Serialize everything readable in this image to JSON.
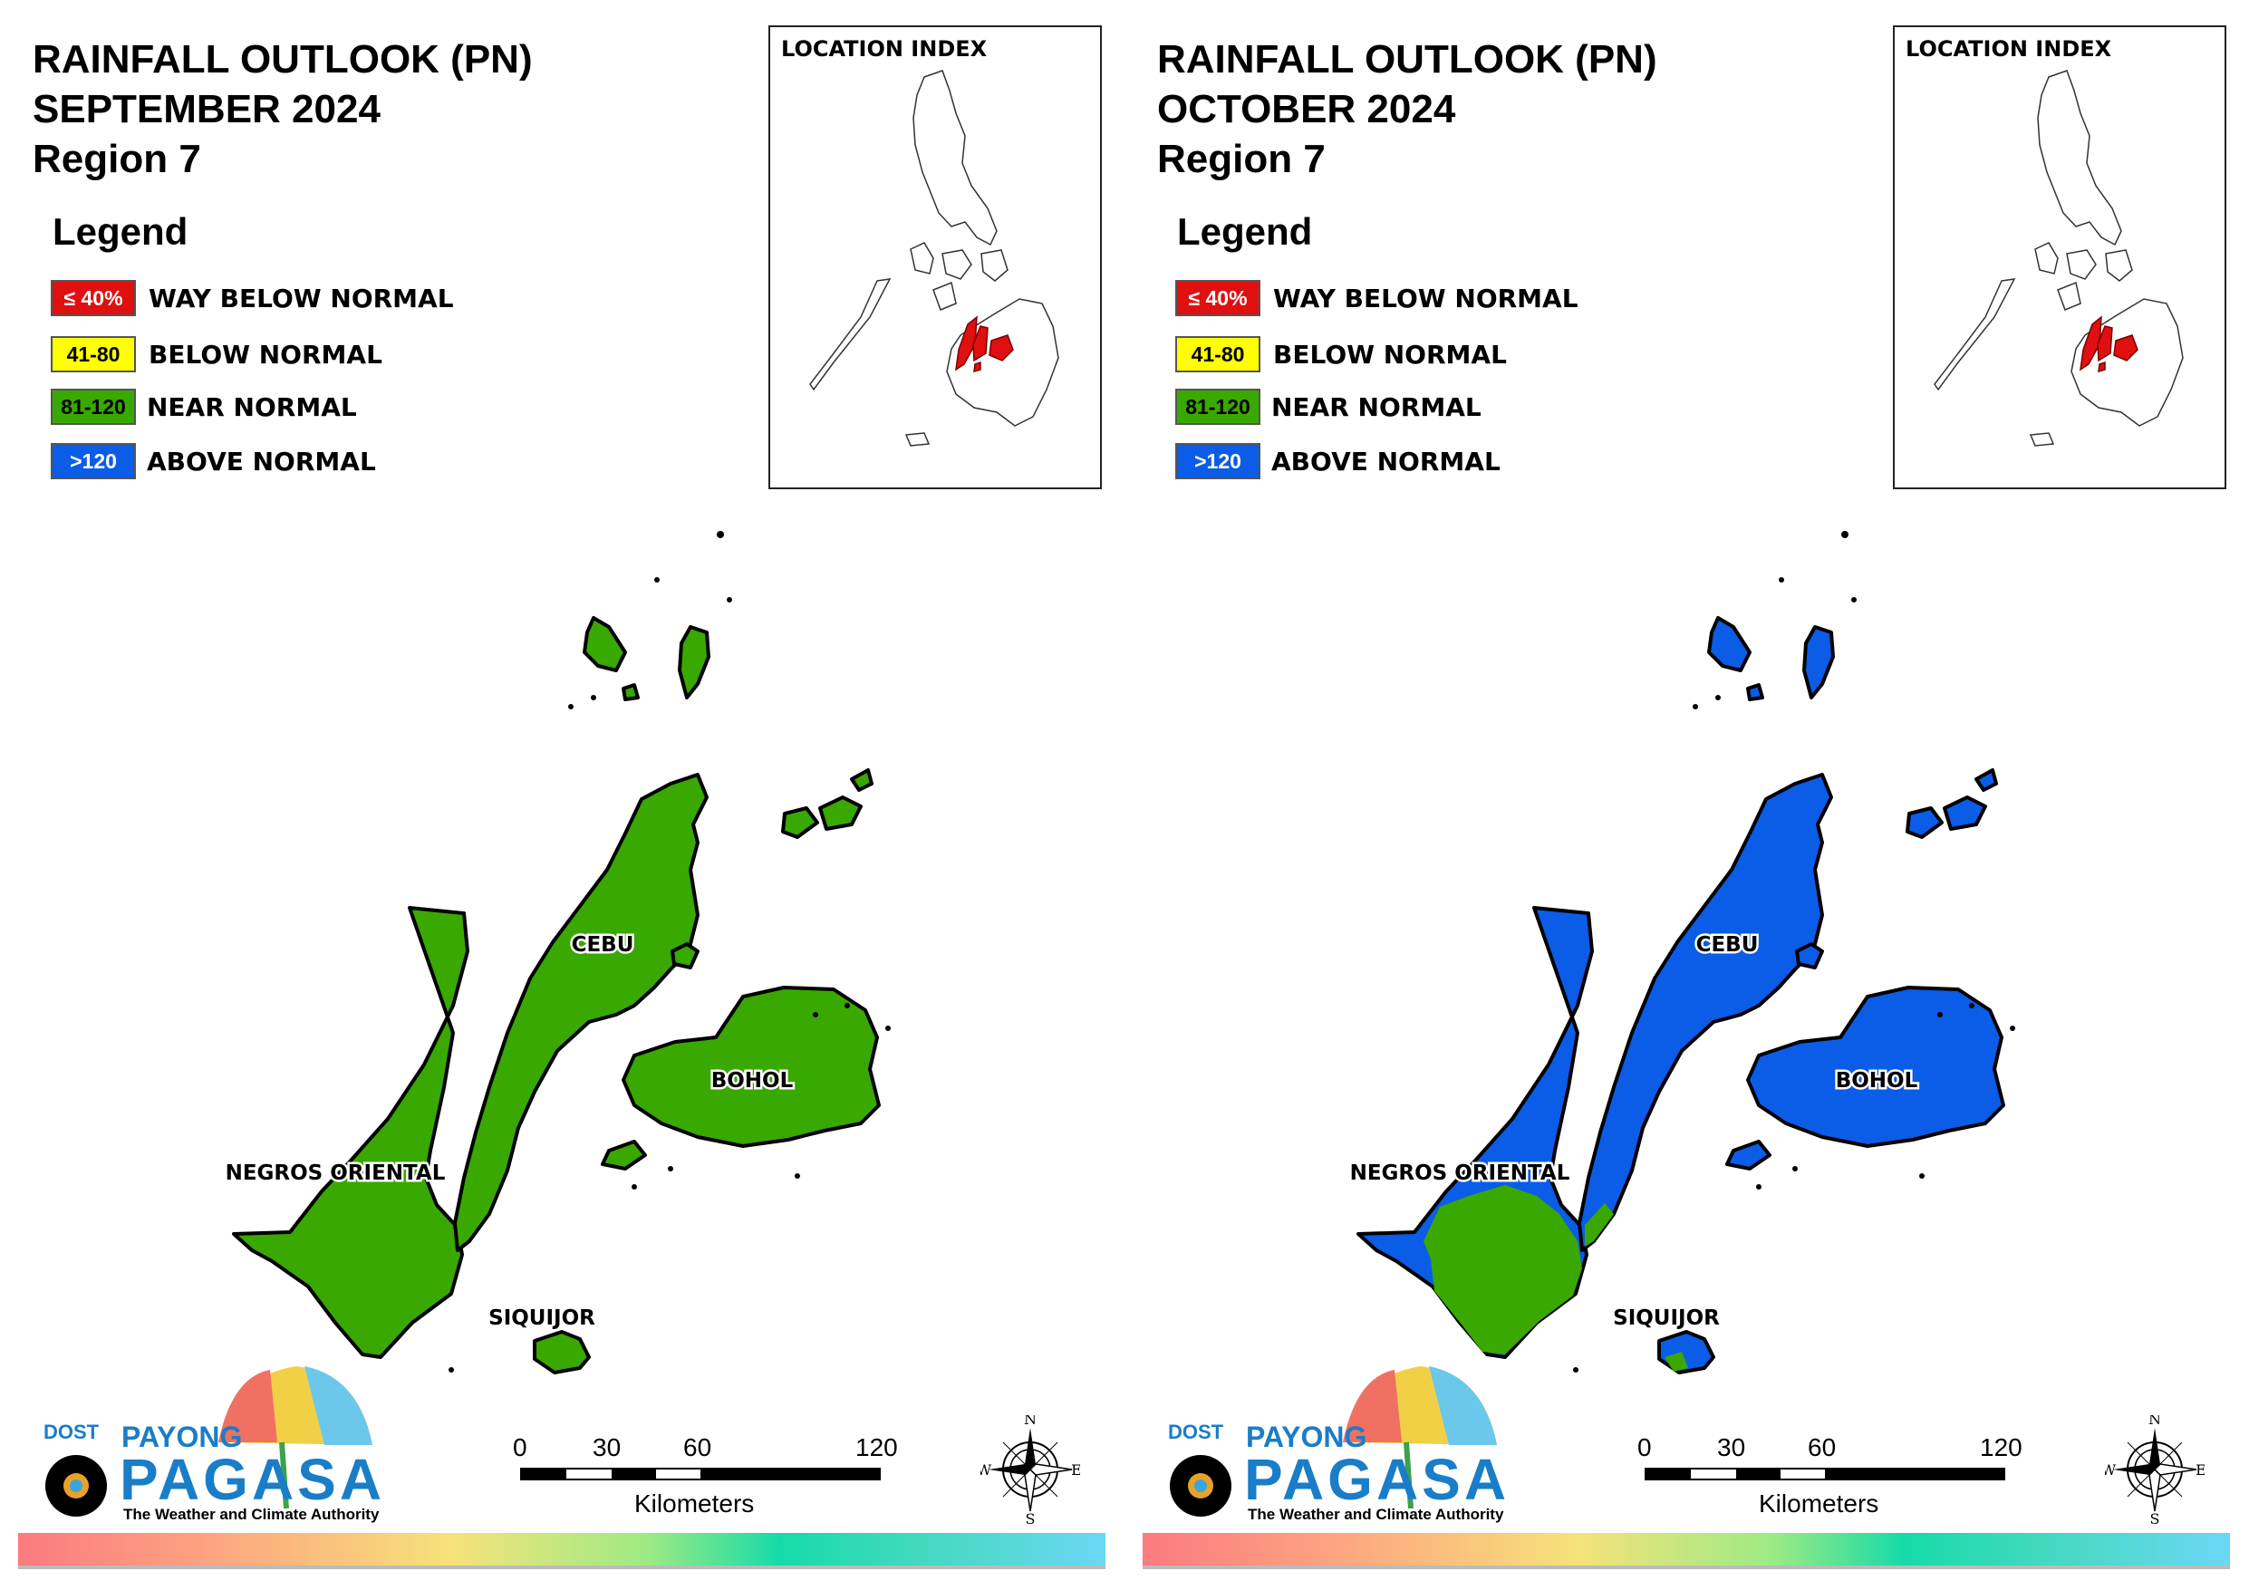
{
  "colors": {
    "way_below": "#e01010",
    "below": "#ffff00",
    "near": "#39a800",
    "above": "#0b5ce6"
  },
  "panels": [
    {
      "title_line1": "RAINFALL OUTLOOK (PN)",
      "title_line2": "SEPTEMBER 2024",
      "title_line3": "Region 7",
      "legend_title": "Legend",
      "legend": [
        {
          "range": "≤ 40%",
          "label": "WAY BELOW NORMAL"
        },
        {
          "range": "41-80",
          "label": "BELOW NORMAL"
        },
        {
          "range": "81-120",
          "label": "NEAR NORMAL"
        },
        {
          "range": ">120",
          "label": "ABOVE NORMAL"
        }
      ],
      "index_title": "LOCATION INDEX",
      "provinces": {
        "cebu": "CEBU",
        "bohol": "BOHOL",
        "negros": "NEGROS ORIENTAL",
        "siquijor": "SIQUIJOR"
      },
      "province_category": {
        "cebu": "NEAR NORMAL",
        "bohol": "NEAR NORMAL",
        "negros": "NEAR NORMAL",
        "siquijor": "NEAR NORMAL"
      },
      "scale": {
        "ticks": [
          "0",
          "30",
          "60",
          "120"
        ],
        "unit": "Kilometers"
      },
      "compass": {
        "n": "N",
        "s": "S",
        "e": "E",
        "w": "W"
      },
      "logo": {
        "dost": "DOST",
        "payong": "PAYONG",
        "pagasa": "PAGASA",
        "tagline": "The Weather and Climate Authority"
      }
    },
    {
      "title_line1": "RAINFALL OUTLOOK (PN)",
      "title_line2": "OCTOBER 2024",
      "title_line3": "Region 7",
      "legend_title": "Legend",
      "legend": [
        {
          "range": "≤ 40%",
          "label": "WAY BELOW NORMAL"
        },
        {
          "range": "41-80",
          "label": "BELOW NORMAL"
        },
        {
          "range": "81-120",
          "label": "NEAR NORMAL"
        },
        {
          "range": ">120",
          "label": "ABOVE NORMAL"
        }
      ],
      "index_title": "LOCATION INDEX",
      "provinces": {
        "cebu": "CEBU",
        "bohol": "BOHOL",
        "negros": "NEGROS ORIENTAL",
        "siquijor": "SIQUIJOR"
      },
      "province_category": {
        "cebu": "ABOVE NORMAL",
        "bohol": "ABOVE NORMAL",
        "negros": "ABOVE NORMAL",
        "negros_south": "NEAR NORMAL",
        "siquijor": "ABOVE NORMAL"
      },
      "scale": {
        "ticks": [
          "0",
          "30",
          "60",
          "120"
        ],
        "unit": "Kilometers"
      },
      "compass": {
        "n": "N",
        "s": "S",
        "e": "E",
        "w": "W"
      },
      "logo": {
        "dost": "DOST",
        "payong": "PAYONG",
        "pagasa": "PAGASA",
        "tagline": "The Weather and Climate Authority"
      }
    }
  ]
}
